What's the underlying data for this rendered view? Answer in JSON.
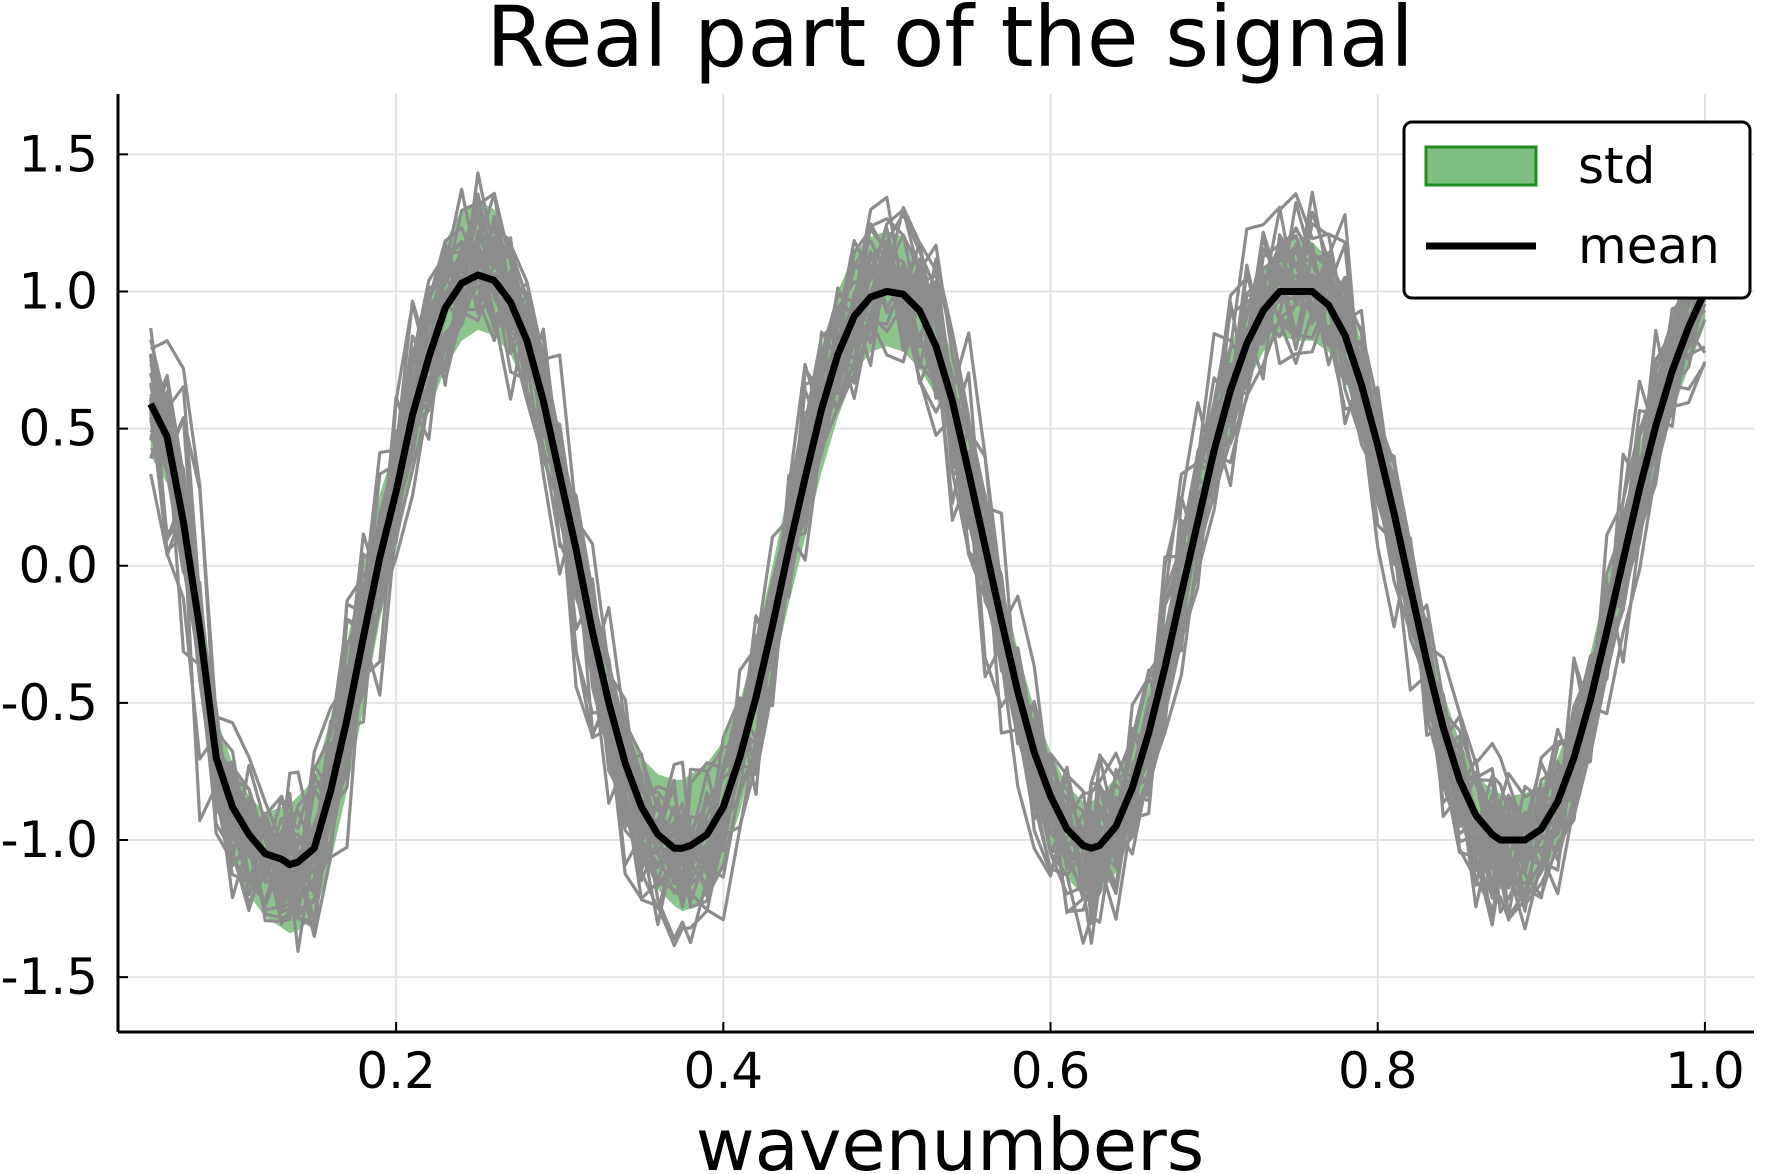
{
  "chart_data": {
    "type": "line",
    "title": "Real part of the signal",
    "xlabel": "wavenumbers",
    "ylabel": "",
    "xlim": [
      0.03,
      1.03
    ],
    "ylim": [
      -1.7,
      1.72
    ],
    "x_ticks": [
      0.2,
      0.4,
      0.6,
      0.8,
      1.0
    ],
    "x_tick_labels": [
      "0.2",
      "0.4",
      "0.6",
      "0.8",
      "1.0"
    ],
    "y_ticks": [
      -1.5,
      -1.0,
      -0.5,
      0.0,
      0.5,
      1.0,
      1.5
    ],
    "y_tick_labels": [
      "-1.5",
      "-1.0",
      "-0.5",
      "0.0",
      "0.5",
      "1.0",
      "1.5"
    ],
    "grid": true,
    "legend_position": "top-right",
    "x": [
      0.05,
      0.06,
      0.07,
      0.08,
      0.09,
      0.1,
      0.11,
      0.12,
      0.13,
      0.135,
      0.14,
      0.15,
      0.16,
      0.17,
      0.18,
      0.19,
      0.2,
      0.21,
      0.22,
      0.23,
      0.24,
      0.25,
      0.26,
      0.27,
      0.28,
      0.29,
      0.3,
      0.31,
      0.32,
      0.33,
      0.34,
      0.35,
      0.36,
      0.37,
      0.375,
      0.38,
      0.39,
      0.4,
      0.41,
      0.42,
      0.43,
      0.44,
      0.45,
      0.46,
      0.47,
      0.48,
      0.49,
      0.5,
      0.51,
      0.52,
      0.53,
      0.54,
      0.55,
      0.56,
      0.57,
      0.58,
      0.59,
      0.6,
      0.61,
      0.62,
      0.625,
      0.63,
      0.64,
      0.65,
      0.66,
      0.67,
      0.68,
      0.69,
      0.7,
      0.71,
      0.72,
      0.73,
      0.74,
      0.75,
      0.76,
      0.77,
      0.78,
      0.79,
      0.8,
      0.81,
      0.82,
      0.83,
      0.84,
      0.85,
      0.86,
      0.87,
      0.875,
      0.88,
      0.89,
      0.9,
      0.91,
      0.92,
      0.93,
      0.94,
      0.95,
      0.96,
      0.97,
      0.98,
      0.99,
      1.0
    ],
    "series": [
      {
        "name": "mean",
        "color": "#000000",
        "y": [
          0.59,
          0.47,
          0.16,
          -0.23,
          -0.7,
          -0.88,
          -0.98,
          -1.05,
          -1.07,
          -1.09,
          -1.08,
          -1.03,
          -0.82,
          -0.56,
          -0.26,
          0.03,
          0.27,
          0.55,
          0.76,
          0.94,
          1.03,
          1.06,
          1.04,
          0.96,
          0.82,
          0.6,
          0.33,
          0.06,
          -0.24,
          -0.5,
          -0.72,
          -0.88,
          -0.98,
          -1.03,
          -1.03,
          -1.02,
          -0.98,
          -0.88,
          -0.7,
          -0.48,
          -0.22,
          0.06,
          0.32,
          0.57,
          0.77,
          0.91,
          0.98,
          1.0,
          0.99,
          0.93,
          0.8,
          0.6,
          0.34,
          0.07,
          -0.2,
          -0.46,
          -0.68,
          -0.84,
          -0.96,
          -1.02,
          -1.03,
          -1.02,
          -0.95,
          -0.81,
          -0.61,
          -0.37,
          -0.1,
          0.16,
          0.42,
          0.64,
          0.81,
          0.93,
          1.0,
          1.0,
          1.0,
          0.95,
          0.84,
          0.66,
          0.44,
          0.19,
          -0.08,
          -0.35,
          -0.59,
          -0.78,
          -0.91,
          -0.98,
          -1.0,
          -1.0,
          -1.0,
          -0.96,
          -0.86,
          -0.7,
          -0.49,
          -0.24,
          0.02,
          0.28,
          0.51,
          0.71,
          0.87,
          1.0
        ]
      }
    ],
    "std_band": {
      "name": "std",
      "color": "#7fbf7f",
      "edge_color": "#1e8c1e",
      "upper": [
        0.75,
        0.58,
        0.3,
        -0.05,
        -0.55,
        -0.72,
        -0.84,
        -0.9,
        -0.88,
        -0.87,
        -0.84,
        -0.78,
        -0.55,
        -0.28,
        0.0,
        0.26,
        0.45,
        0.72,
        0.96,
        1.18,
        1.3,
        1.33,
        1.3,
        1.16,
        0.98,
        0.74,
        0.46,
        0.2,
        -0.1,
        -0.36,
        -0.58,
        -0.7,
        -0.76,
        -0.78,
        -0.78,
        -0.76,
        -0.72,
        -0.64,
        -0.5,
        -0.28,
        0.0,
        0.28,
        0.55,
        0.8,
        1.0,
        1.14,
        1.2,
        1.22,
        1.2,
        1.12,
        0.96,
        0.76,
        0.5,
        0.22,
        -0.05,
        -0.31,
        -0.52,
        -0.68,
        -0.8,
        -0.86,
        -0.86,
        -0.84,
        -0.77,
        -0.63,
        -0.44,
        -0.21,
        0.06,
        0.32,
        0.57,
        0.8,
        0.96,
        1.08,
        1.16,
        1.2,
        1.18,
        1.12,
        1.0,
        0.82,
        0.6,
        0.34,
        0.07,
        -0.22,
        -0.46,
        -0.64,
        -0.76,
        -0.82,
        -0.83,
        -0.84,
        -0.83,
        -0.8,
        -0.7,
        -0.54,
        -0.32,
        -0.06,
        0.19,
        0.44,
        0.66,
        0.85,
        1.0,
        1.1
      ],
      "lower": [
        0.4,
        0.3,
        0.0,
        -0.42,
        -0.88,
        -1.08,
        -1.2,
        -1.28,
        -1.32,
        -1.34,
        -1.33,
        -1.28,
        -1.08,
        -0.82,
        -0.52,
        -0.2,
        0.06,
        0.36,
        0.56,
        0.72,
        0.82,
        0.86,
        0.84,
        0.77,
        0.64,
        0.44,
        0.18,
        -0.08,
        -0.38,
        -0.64,
        -0.88,
        -1.06,
        -1.18,
        -1.24,
        -1.26,
        -1.25,
        -1.2,
        -1.08,
        -0.9,
        -0.66,
        -0.4,
        -0.14,
        0.1,
        0.34,
        0.54,
        0.7,
        0.78,
        0.8,
        0.78,
        0.72,
        0.62,
        0.44,
        0.18,
        -0.08,
        -0.36,
        -0.62,
        -0.86,
        -1.02,
        -1.14,
        -1.2,
        -1.21,
        -1.2,
        -1.12,
        -0.98,
        -0.78,
        -0.54,
        -0.26,
        0.0,
        0.26,
        0.48,
        0.66,
        0.78,
        0.84,
        0.82,
        0.82,
        0.78,
        0.68,
        0.5,
        0.28,
        0.04,
        -0.24,
        -0.5,
        -0.74,
        -0.94,
        -1.08,
        -1.15,
        -1.18,
        -1.18,
        -1.18,
        -1.13,
        -1.02,
        -0.86,
        -0.66,
        -0.42,
        -0.16,
        0.1,
        0.34,
        0.56,
        0.72,
        0.88
      ]
    },
    "sample_count": 30,
    "sample_color": "#8c8c8c",
    "legend": [
      {
        "label": "std",
        "kind": "band",
        "color": "#7fbf7f"
      },
      {
        "label": "mean",
        "kind": "line",
        "color": "#000000"
      }
    ]
  }
}
